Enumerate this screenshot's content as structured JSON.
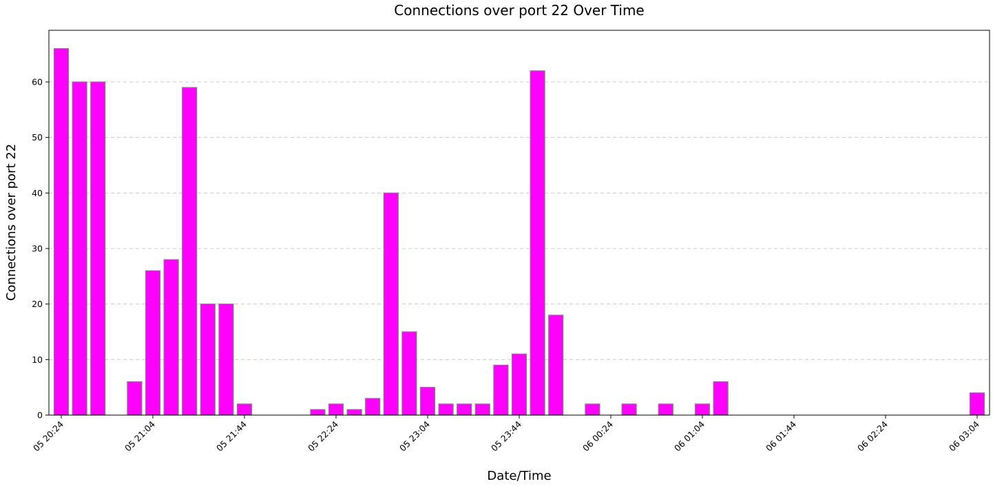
{
  "chart_data": {
    "type": "bar",
    "title": "Connections over port 22 Over Time",
    "xlabel": "Date/Time",
    "ylabel": "Connections over port 22",
    "bar_color": "#ff00ff",
    "bar_edge_color": "#808080",
    "grid": "horizontal-dashed",
    "ylim": [
      0,
      69.3
    ],
    "yticks": [
      0,
      10,
      20,
      30,
      40,
      50,
      60
    ],
    "x_interval_minutes": 8,
    "x_start": "05 20:24",
    "x_end": "06 03:04",
    "xticks": [
      "05 20:24",
      "05 21:04",
      "05 21:44",
      "05 22:24",
      "05 23:04",
      "05 23:44",
      "06 00:24",
      "06 01:04",
      "06 01:44",
      "06 02:24",
      "06 03:04"
    ],
    "categories": [
      "05 20:24",
      "05 20:32",
      "05 20:40",
      "05 20:48",
      "05 20:56",
      "05 21:04",
      "05 21:12",
      "05 21:20",
      "05 21:28",
      "05 21:36",
      "05 21:44",
      "05 21:52",
      "05 22:00",
      "05 22:08",
      "05 22:16",
      "05 22:24",
      "05 22:32",
      "05 22:40",
      "05 22:48",
      "05 22:56",
      "05 23:04",
      "05 23:12",
      "05 23:20",
      "05 23:28",
      "05 23:36",
      "05 23:44",
      "05 23:52",
      "06 00:00",
      "06 00:08",
      "06 00:16",
      "06 00:24",
      "06 00:32",
      "06 00:40",
      "06 00:48",
      "06 00:56",
      "06 01:04",
      "06 01:12",
      "06 01:20",
      "06 01:28",
      "06 01:36",
      "06 01:44",
      "06 01:52",
      "06 02:00",
      "06 02:08",
      "06 02:16",
      "06 02:24",
      "06 02:32",
      "06 02:40",
      "06 02:48",
      "06 02:56",
      "06 03:04"
    ],
    "values": [
      66,
      60,
      60,
      0,
      6,
      26,
      28,
      59,
      20,
      20,
      2,
      0,
      0,
      0,
      1,
      2,
      1,
      3,
      40,
      15,
      5,
      2,
      2,
      2,
      9,
      11,
      62,
      18,
      0,
      2,
      0,
      2,
      0,
      2,
      0,
      2,
      6,
      0,
      0,
      0,
      0,
      0,
      0,
      0,
      0,
      0,
      0,
      0,
      0,
      0,
      4
    ]
  }
}
